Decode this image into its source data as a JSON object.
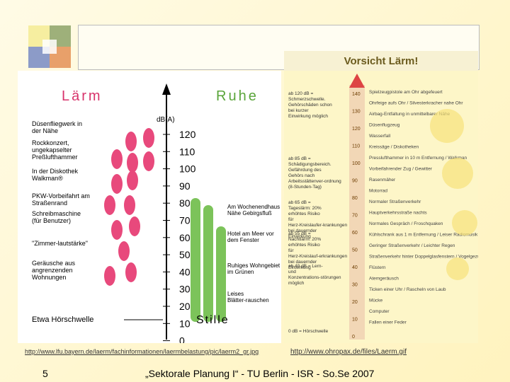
{
  "logo_colors": [
    "#f6eea0",
    "#9eb07a",
    "#8c9bc8",
    "#e8a06a"
  ],
  "header": {
    "title": "Vorsicht Lärm!"
  },
  "left_chart": {
    "title_left": "Lärm",
    "title_right": "Ruhe",
    "unit": "dB(A)",
    "scale": [
      "120",
      "110",
      "100",
      "90",
      "80",
      "70",
      "60",
      "50",
      "40",
      "30",
      "20",
      "10",
      "0"
    ],
    "bottom_label": "Etwa Hörschwelle",
    "stille": "Stille",
    "left_labels": [
      "Düsenflieg­werk in der Nähe",
      "Rockkonzert, ungekapselter Preßlufthammer",
      "In der Diskothek Walkman®",
      "PKW-Vorbeifahrt am Straßenrand",
      "Schreibmaschine (für Benutzer)",
      "\"Zimmer-lautstärke\"",
      "Geräusche aus angrenzenden Wohnungen"
    ],
    "right_labels": [
      "Am Wochenendhaus Nähe Gebirgsfluß",
      "Hotel am Meer vor dem Fenster",
      "Ruhiges Wohngebiet im Grünen",
      "Leises Blätter-rauschen"
    ]
  },
  "right_chart": {
    "db_scale": [
      "140",
      "130",
      "120",
      "110",
      "100",
      "90",
      "80",
      "70",
      "60",
      "50",
      "40",
      "30",
      "20",
      "10",
      "0"
    ],
    "left_notes": [
      "ab 120 dB = Schmerzschwelle. Gehörschäden schon bei kurzer Einwirkung möglich",
      "ab 85 dB = Schädigungsbereich. Gefährdung des Gehörs nach Arbeitsstättenver-ordnung (8-Stunden-Tag)",
      "ab 65 dB = Tageslärm: 20% erhöhtes Risiko für Herz-Kreislaufer-krankungen bei dauernder Einwirkung",
      "ab 55 dB = Nachtlärm: 20% erhöhtes Risiko für Herz-Kreislauf-erkrankungen bei dauernder Einwirkung",
      "ab 40 dB = Lern- und Konzentrations-störungen möglich",
      "0 dB = Hörschwelle"
    ],
    "sources": [
      "Spielzeugpistole am Ohr abgefeuert",
      "Ohrfeige aufs Ohr / Silvesterkracher nahe Ohr",
      "Airbag-Entfaltung in unmittelbarer Nähe",
      "Düsenflugzeug",
      "Wasserfall",
      "Kreissäge / Diskotheken",
      "Presslufthammer in 10 m Entfernung / Walkman",
      "Vorbeifahrender Zug / Gewitter",
      "Rasenmäher",
      "Motorrad",
      "Normaler Straßenverkehr",
      "Hauptverkehrsstraße nachts",
      "Normales Gespräch / Froschquaken",
      "Kühlschrank aus 1 m Entfernung / Leiser Radiomusik",
      "Geringer Straßenverkehr / Leichter Regen",
      "Straßenverkehr hinter Doppelglasfenstern / Vogelgezwitscher",
      "Flüstern",
      "Atemgeräusch",
      "Ticken einer Uhr / Rascheln von Laub",
      "Mücke",
      "Computer",
      "Fallen einer Feder"
    ]
  },
  "urls": {
    "left": "http://www.lfu.bayern.de/laerm/fachinformationen/laermbelastung/pic/laerm2_gr.jpg",
    "right": "http://www.ohropax.de/files/Laerm.gif"
  },
  "footer": {
    "page": "5",
    "text": "„Sektorale Planung I“  -  TU Berlin -  ISR -  So.Se 2007"
  }
}
